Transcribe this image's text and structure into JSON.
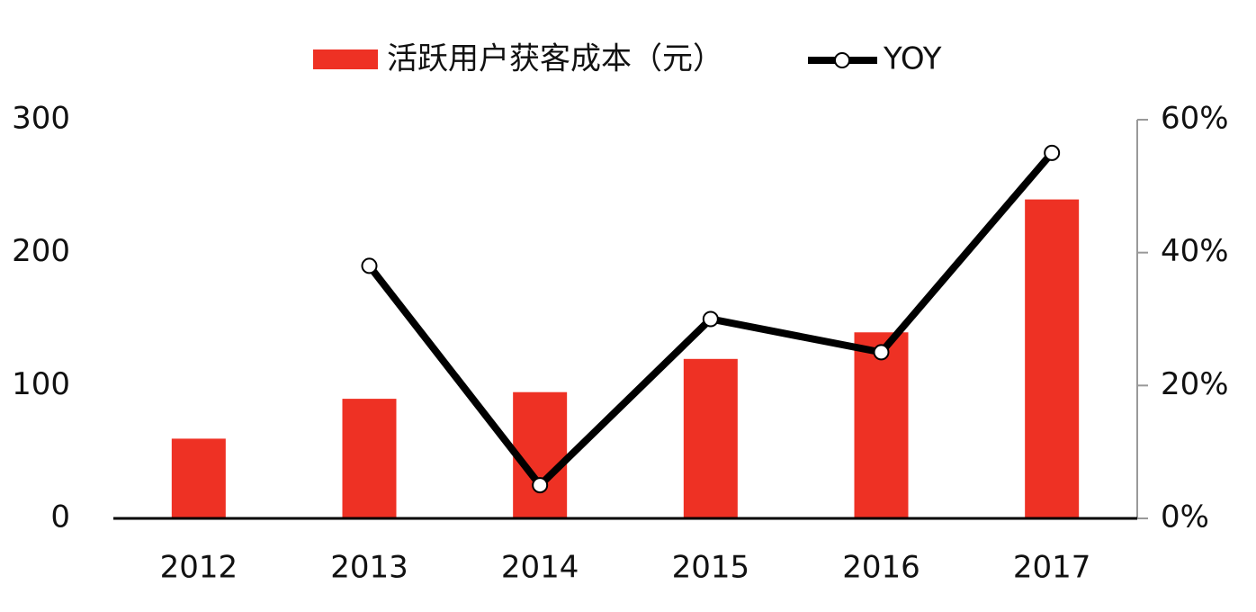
{
  "chart_data": {
    "type": "bar_line",
    "categories": [
      "2012",
      "2013",
      "2014",
      "2015",
      "2016",
      "2017"
    ],
    "series": [
      {
        "name": "活跃用户获客成本（元）",
        "type": "bar",
        "color": "#ee3124",
        "values": [
          60,
          90,
          95,
          120,
          140,
          240
        ]
      },
      {
        "name": "YOY",
        "type": "line",
        "color": "#000000",
        "axis": "y2",
        "values": [
          null,
          38,
          5,
          30,
          25,
          55
        ]
      }
    ],
    "ylim": [
      0,
      300
    ],
    "yticks": [
      0,
      100,
      200,
      300
    ],
    "y2lim": [
      0,
      60
    ],
    "y2ticks": [
      {
        "value": 0,
        "label": "0%"
      },
      {
        "value": 20,
        "label": "20%"
      },
      {
        "value": 40,
        "label": "40%"
      },
      {
        "value": 60,
        "label": "60%"
      }
    ],
    "legend": "top"
  }
}
